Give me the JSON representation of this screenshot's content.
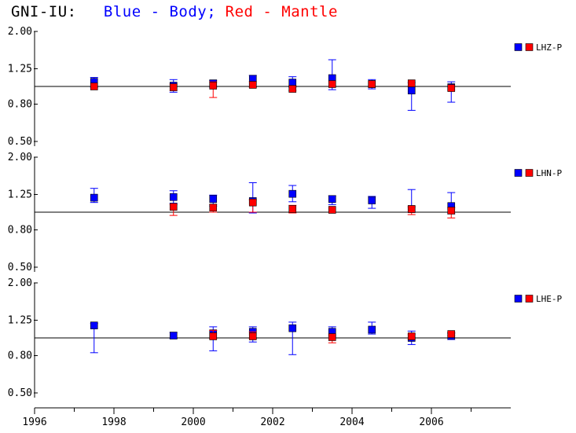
{
  "title": {
    "station": "GNI-IU:",
    "blue_label": "Blue - Body;",
    "red_label": "Red - Mantle",
    "blue_color": "#0000ff",
    "red_color": "#ff0000"
  },
  "chart_data": [
    {
      "type": "scatter",
      "channel": "LHZ-P",
      "yscale": "log",
      "ylim": [
        0.45,
        2.05
      ],
      "yticks": [
        "0.50",
        "0.80",
        "1.25",
        "2.00"
      ],
      "reference_line": 1.0,
      "series": [
        {
          "name": "Blue - Body",
          "color": "#0000ff",
          "points": [
            {
              "x": 1997.5,
              "y": 1.06,
              "lo": 0.99,
              "hi": 1.12
            },
            {
              "x": 1999.5,
              "y": 1.01,
              "lo": 0.93,
              "hi": 1.09
            },
            {
              "x": 2000.5,
              "y": 1.04,
              "lo": 0.99,
              "hi": 1.08
            },
            {
              "x": 2001.5,
              "y": 1.1,
              "lo": 1.03,
              "hi": 1.15
            },
            {
              "x": 2002.5,
              "y": 1.05,
              "lo": 0.99,
              "hi": 1.13
            },
            {
              "x": 2003.5,
              "y": 1.11,
              "lo": 0.96,
              "hi": 1.4
            },
            {
              "x": 2004.5,
              "y": 1.03,
              "lo": 0.97,
              "hi": 1.09
            },
            {
              "x": 2005.5,
              "y": 0.95,
              "lo": 0.74,
              "hi": 1.05
            },
            {
              "x": 2006.5,
              "y": 0.99,
              "lo": 0.82,
              "hi": 1.06
            }
          ]
        },
        {
          "name": "Red - Mantle",
          "color": "#ff0000",
          "points": [
            {
              "x": 1997.5,
              "y": 1.0
            },
            {
              "x": 1999.5,
              "y": 0.99,
              "lo": 0.95,
              "hi": 1.03
            },
            {
              "x": 2000.5,
              "y": 1.01,
              "lo": 0.87,
              "hi": 1.06
            },
            {
              "x": 2001.5,
              "y": 1.02,
              "lo": 0.99,
              "hi": 1.06
            },
            {
              "x": 2002.5,
              "y": 0.97,
              "lo": 0.95,
              "hi": 1.01
            },
            {
              "x": 2003.5,
              "y": 1.03
            },
            {
              "x": 2004.5,
              "y": 1.03
            },
            {
              "x": 2005.5,
              "y": 1.04
            },
            {
              "x": 2006.5,
              "y": 0.98
            }
          ]
        }
      ]
    },
    {
      "type": "scatter",
      "channel": "LHN-P",
      "yscale": "log",
      "ylim": [
        0.45,
        2.05
      ],
      "yticks": [
        "0.50",
        "0.80",
        "1.25",
        "2.00"
      ],
      "reference_line": 1.0,
      "series": [
        {
          "name": "Blue - Body",
          "color": "#0000ff",
          "points": [
            {
              "x": 1997.5,
              "y": 1.2,
              "lo": 1.13,
              "hi": 1.35
            },
            {
              "x": 1999.5,
              "y": 1.21,
              "lo": 1.12,
              "hi": 1.31
            },
            {
              "x": 2000.5,
              "y": 1.18,
              "lo": 1.08,
              "hi": 1.24
            },
            {
              "x": 2001.5,
              "y": 1.15,
              "lo": 0.99,
              "hi": 1.45
            },
            {
              "x": 2002.5,
              "y": 1.26,
              "lo": 1.14,
              "hi": 1.4
            },
            {
              "x": 2003.5,
              "y": 1.18,
              "lo": 1.1,
              "hi": 1.23
            },
            {
              "x": 2004.5,
              "y": 1.16,
              "lo": 1.05,
              "hi": 1.22
            },
            {
              "x": 2005.5,
              "y": 1.04,
              "lo": 1.0,
              "hi": 1.33
            },
            {
              "x": 2006.5,
              "y": 1.08,
              "lo": 0.98,
              "hi": 1.28
            }
          ]
        },
        {
          "name": "Red - Mantle",
          "color": "#ff0000",
          "points": [
            {
              "x": 1999.5,
              "y": 1.07,
              "lo": 0.96,
              "hi": 1.1
            },
            {
              "x": 2000.5,
              "y": 1.06,
              "lo": 1.0,
              "hi": 1.1
            },
            {
              "x": 2001.5,
              "y": 1.13,
              "lo": 1.0,
              "hi": 1.17
            },
            {
              "x": 2002.5,
              "y": 1.04,
              "lo": 0.99,
              "hi": 1.09
            },
            {
              "x": 2003.5,
              "y": 1.03
            },
            {
              "x": 2005.5,
              "y": 1.04,
              "lo": 0.97,
              "hi": 1.07
            },
            {
              "x": 2006.5,
              "y": 1.02,
              "lo": 0.93,
              "hi": 1.06
            }
          ]
        }
      ]
    },
    {
      "type": "scatter",
      "channel": "LHE-P",
      "yscale": "log",
      "ylim": [
        0.45,
        2.05
      ],
      "yticks": [
        "0.50",
        "0.80",
        "1.25",
        "2.00"
      ],
      "reference_line": 1.0,
      "series": [
        {
          "name": "Blue - Body",
          "color": "#0000ff",
          "points": [
            {
              "x": 1997.5,
              "y": 1.17,
              "lo": 0.83,
              "hi": 1.2
            },
            {
              "x": 1999.5,
              "y": 1.03,
              "lo": 0.99,
              "hi": 1.07
            },
            {
              "x": 2000.5,
              "y": 1.06,
              "lo": 0.85,
              "hi": 1.15
            },
            {
              "x": 2001.5,
              "y": 1.08,
              "lo": 0.95,
              "hi": 1.15
            },
            {
              "x": 2002.5,
              "y": 1.13,
              "lo": 0.81,
              "hi": 1.22
            },
            {
              "x": 2003.5,
              "y": 1.08,
              "lo": 1.02,
              "hi": 1.15
            },
            {
              "x": 2004.5,
              "y": 1.11,
              "lo": 1.05,
              "hi": 1.22
            },
            {
              "x": 2005.5,
              "y": 1.0,
              "lo": 0.92,
              "hi": 1.09
            },
            {
              "x": 2006.5,
              "y": 1.03,
              "lo": 0.98,
              "hi": 1.06
            }
          ]
        },
        {
          "name": "Red - Mantle",
          "color": "#ff0000",
          "points": [
            {
              "x": 2000.5,
              "y": 1.02,
              "lo": 0.99,
              "hi": 1.1
            },
            {
              "x": 2001.5,
              "y": 1.02,
              "lo": 0.99,
              "hi": 1.08
            },
            {
              "x": 2003.5,
              "y": 1.01,
              "lo": 0.94,
              "hi": 1.04
            },
            {
              "x": 2005.5,
              "y": 1.02,
              "lo": 0.98,
              "hi": 1.05
            },
            {
              "x": 2006.5,
              "y": 1.05,
              "lo": 1.03,
              "hi": 1.07
            }
          ]
        }
      ]
    }
  ],
  "x_axis": {
    "xlim": [
      1996,
      2008
    ],
    "tick_labels": [
      {
        "x": 1996,
        "label": "1996"
      },
      {
        "x": 1998,
        "label": "1998"
      },
      {
        "x": 2000,
        "label": "2000"
      },
      {
        "x": 2002,
        "label": "2002"
      },
      {
        "x": 2004,
        "label": "2004"
      },
      {
        "x": 2006,
        "label": "2006"
      }
    ],
    "minor_ticks": [
      1997,
      1999,
      2001,
      2003,
      2005,
      2007
    ]
  }
}
